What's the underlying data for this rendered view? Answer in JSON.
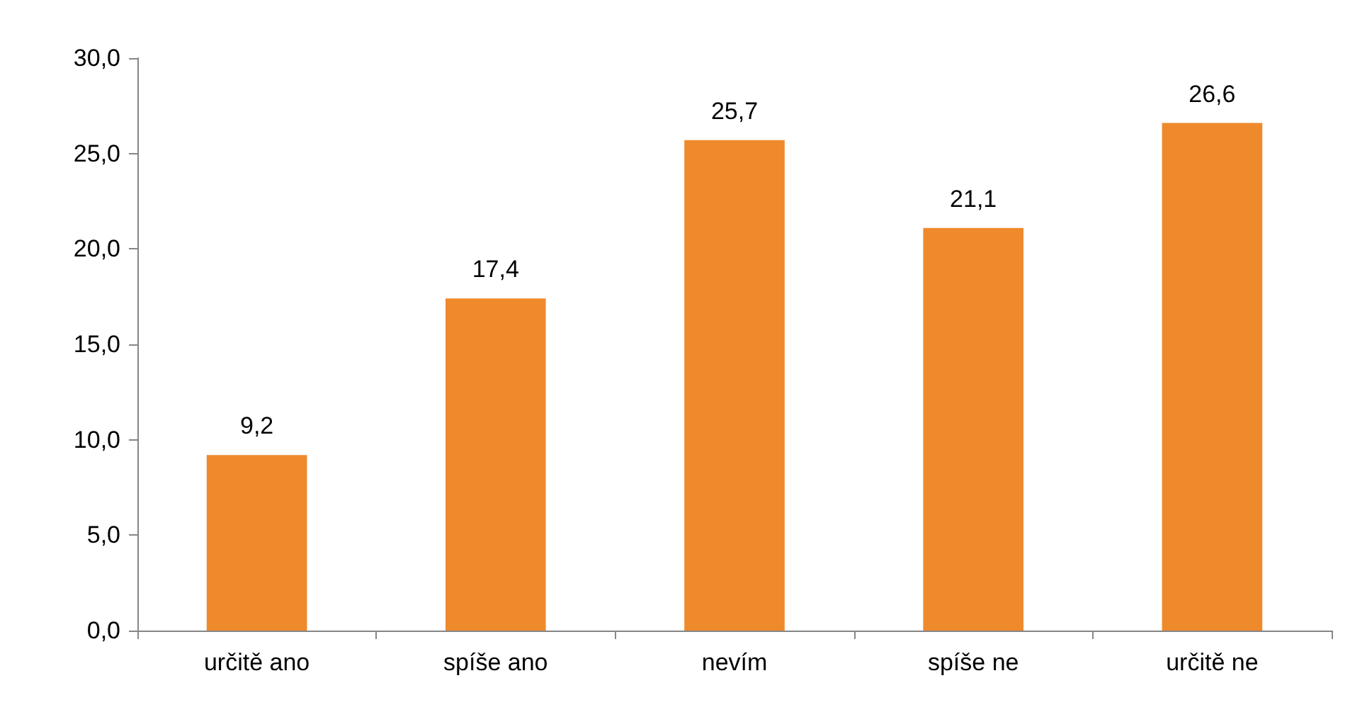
{
  "chart_data": {
    "type": "bar",
    "categories": [
      "určitě ano",
      "spíše ano",
      "nevím",
      "spíše ne",
      "určitě ne"
    ],
    "values": [
      9.2,
      17.4,
      25.7,
      21.1,
      26.6
    ],
    "value_labels": [
      "9,2",
      "17,4",
      "25,7",
      "21,1",
      "26,6"
    ],
    "color": "#ee8a2c",
    "ylim": [
      0,
      30
    ],
    "yticks": [
      {
        "value": 0,
        "label": "0,0"
      },
      {
        "value": 5,
        "label": "5,0"
      },
      {
        "value": 10,
        "label": "10,0"
      },
      {
        "value": 15,
        "label": "15,0"
      },
      {
        "value": 20,
        "label": "20,0"
      },
      {
        "value": 25,
        "label": "25,0"
      },
      {
        "value": 30,
        "label": "30,0"
      }
    ],
    "grid": false
  }
}
